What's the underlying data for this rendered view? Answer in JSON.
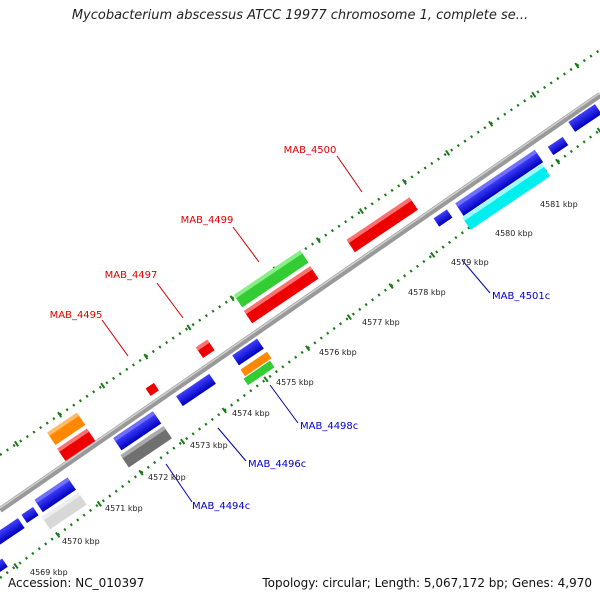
{
  "title": "Mycobacterium abscessus ATCC 19977 chromosome 1, complete se...",
  "footer": {
    "accession": "Accession: NC_010397",
    "summary": "Topology: circular; Length: 5,067,172 bp; Genes: 4,970"
  },
  "colors": {
    "backbone": "#8c8c8c",
    "forward_label": "#e00000",
    "reverse_label": "#0000cc",
    "tick": "#1a7a1a",
    "blue": "#0000ee",
    "red": "#ee0000",
    "green": "#33cc33",
    "orange": "#ff8800",
    "cyan": "#00eeee",
    "gray": "#707070",
    "light_gray": "#d8d8d8"
  },
  "scale_labels": [
    "4569 kbp",
    "4570 kbp",
    "4571 kbp",
    "4572 kbp",
    "4573 kbp",
    "4574 kbp",
    "4575 kbp",
    "4576 kbp",
    "4577 kbp",
    "4578 kbp",
    "4579 kbp",
    "4580 kbp",
    "4581 kbp"
  ],
  "gene_labels_forward": [
    "MAB_4495",
    "MAB_4497",
    "MAB_4499",
    "MAB_4500"
  ],
  "gene_labels_reverse": [
    "MAB_4494c",
    "MAB_4496c",
    "MAB_4498c",
    "MAB_4501c"
  ],
  "features": [
    {
      "name": "blue",
      "color": "blue"
    },
    {
      "name": "red",
      "color": "red"
    },
    {
      "name": "green",
      "color": "green"
    },
    {
      "name": "orange",
      "color": "orange"
    },
    {
      "name": "cyan",
      "color": "cyan"
    },
    {
      "name": "gray",
      "color": "gray"
    },
    {
      "name": "light-gray",
      "color": "light_gray"
    }
  ]
}
